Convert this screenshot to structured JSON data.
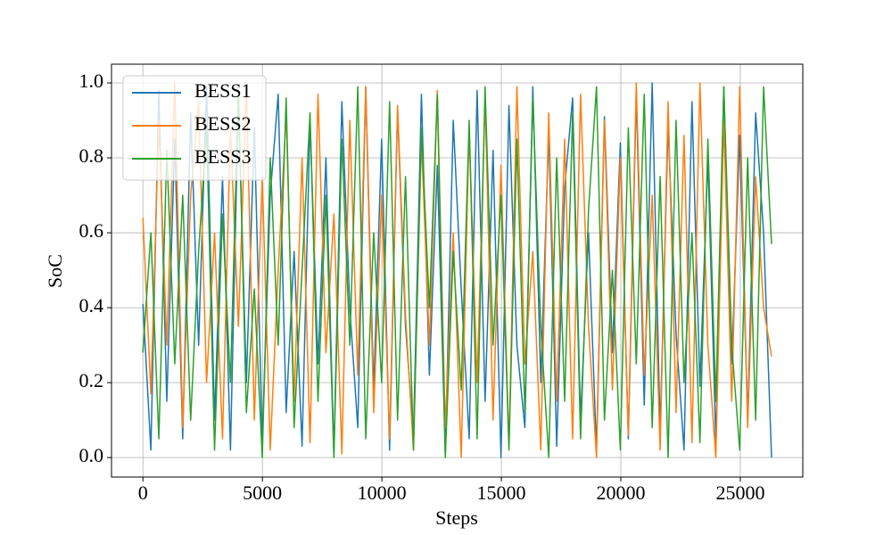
{
  "chart_data": {
    "type": "line",
    "xlabel": "Steps",
    "ylabel": "SoC",
    "x": [
      0,
      333,
      666,
      999,
      1332,
      1665,
      1998,
      2331,
      2664,
      2997,
      3330,
      3663,
      3996,
      4329,
      4662,
      4995,
      5328,
      5661,
      5994,
      6327,
      6660,
      6993,
      7326,
      7659,
      7992,
      8325,
      8658,
      8991,
      9324,
      9657,
      9990,
      10323,
      10656,
      10989,
      11322,
      11655,
      11988,
      12321,
      12654,
      12987,
      13320,
      13653,
      13986,
      14319,
      14652,
      14985,
      15318,
      15651,
      15984,
      16317,
      16650,
      16983,
      17316,
      17649,
      17982,
      18315,
      18648,
      18981,
      19314,
      19647,
      19980,
      20313,
      20646,
      20979,
      21312,
      21645,
      21978,
      22311,
      22644,
      22977,
      23310,
      23643,
      23976,
      24309,
      24642,
      24975,
      25308,
      25641,
      25974,
      26307
    ],
    "series": [
      {
        "name": "BESS1",
        "color": "#1f77b4",
        "values": [
          0.41,
          0.02,
          0.98,
          0.15,
          0.85,
          0.05,
          0.92,
          0.3,
          0.99,
          0.1,
          0.75,
          0.02,
          0.96,
          0.2,
          0.88,
          0.04,
          0.7,
          0.97,
          0.12,
          0.55,
          0.03,
          0.9,
          0.25,
          0.8,
          0.01,
          0.95,
          0.4,
          0.08,
          0.99,
          0.18,
          0.85,
          0.02,
          0.93,
          0.35,
          0.06,
          0.97,
          0.22,
          0.78,
          0.01,
          0.9,
          0.45,
          0.05,
          0.98,
          0.15,
          0.82,
          0.0,
          0.94,
          0.3,
          0.08,
          0.99,
          0.2,
          0.87,
          0.03,
          0.72,
          0.96,
          0.1,
          0.6,
          0.02,
          0.91,
          0.28,
          0.84,
          0.05,
          0.97,
          0.14,
          1.0,
          0.07,
          0.89,
          0.33,
          0.02,
          0.95,
          0.19,
          0.8,
          0.04,
          0.99,
          0.25,
          0.86,
          0.1,
          0.92,
          0.6,
          0.0
        ]
      },
      {
        "name": "BESS2",
        "color": "#ff7f0e",
        "values": [
          0.64,
          0.17,
          0.9,
          0.3,
          1.0,
          0.08,
          0.7,
          0.95,
          0.2,
          0.6,
          0.05,
          0.88,
          0.35,
          0.99,
          0.1,
          0.75,
          0.02,
          0.5,
          0.92,
          0.15,
          0.8,
          0.04,
          0.97,
          0.28,
          0.65,
          0.01,
          0.9,
          0.22,
          0.99,
          0.12,
          0.7,
          0.05,
          0.94,
          0.38,
          0.02,
          0.85,
          0.3,
          0.98,
          0.08,
          0.6,
          0.0,
          0.88,
          0.2,
          0.96,
          0.1,
          0.78,
          0.03,
          0.99,
          0.25,
          0.55,
          0.02,
          0.92,
          0.15,
          0.85,
          0.05,
          0.97,
          0.35,
          0.0,
          0.9,
          0.18,
          0.8,
          0.06,
          1.0,
          0.22,
          0.7,
          0.02,
          0.95,
          0.12,
          0.86,
          0.04,
          1.0,
          0.3,
          0.0,
          0.9,
          0.15,
          0.99,
          0.08,
          0.75,
          0.4,
          0.27
        ]
      },
      {
        "name": "BESS3",
        "color": "#2ca02c",
        "values": [
          0.28,
          0.6,
          0.05,
          0.82,
          0.25,
          0.7,
          0.1,
          0.55,
          0.88,
          0.02,
          0.65,
          0.2,
          0.99,
          0.12,
          0.45,
          0.0,
          0.8,
          0.3,
          0.96,
          0.08,
          0.5,
          0.92,
          0.15,
          0.7,
          0.0,
          0.85,
          0.3,
          0.99,
          0.05,
          0.6,
          0.2,
          0.95,
          0.1,
          0.75,
          0.02,
          0.88,
          0.4,
          0.97,
          0.0,
          0.55,
          0.18,
          0.9,
          0.05,
          0.99,
          0.3,
          0.7,
          0.02,
          0.85,
          0.12,
          0.96,
          0.35,
          0.0,
          0.8,
          0.15,
          0.92,
          0.05,
          0.66,
          0.99,
          0.1,
          0.5,
          0.02,
          0.88,
          0.25,
          0.97,
          0.08,
          0.75,
          0.0,
          0.9,
          0.2,
          0.6,
          0.04,
          0.85,
          0.15,
          0.99,
          0.3,
          0.02,
          0.8,
          0.1,
          0.99,
          0.57
        ]
      }
    ],
    "xlim": [
      -1315,
      27615
    ],
    "ylim": [
      -0.052,
      1.05
    ],
    "xticks": [
      0,
      5000,
      10000,
      15000,
      20000,
      25000
    ],
    "yticks": [
      {
        "value": 0,
        "label": "0.0"
      },
      {
        "value": 0.2,
        "label": "0.2"
      },
      {
        "value": 0.4,
        "label": "0.4"
      },
      {
        "value": 0.6,
        "label": "0.6"
      },
      {
        "value": 0.8,
        "label": "0.8"
      },
      {
        "value": 1,
        "label": "1.0"
      }
    ],
    "grid": true,
    "legend": "upper-left"
  }
}
